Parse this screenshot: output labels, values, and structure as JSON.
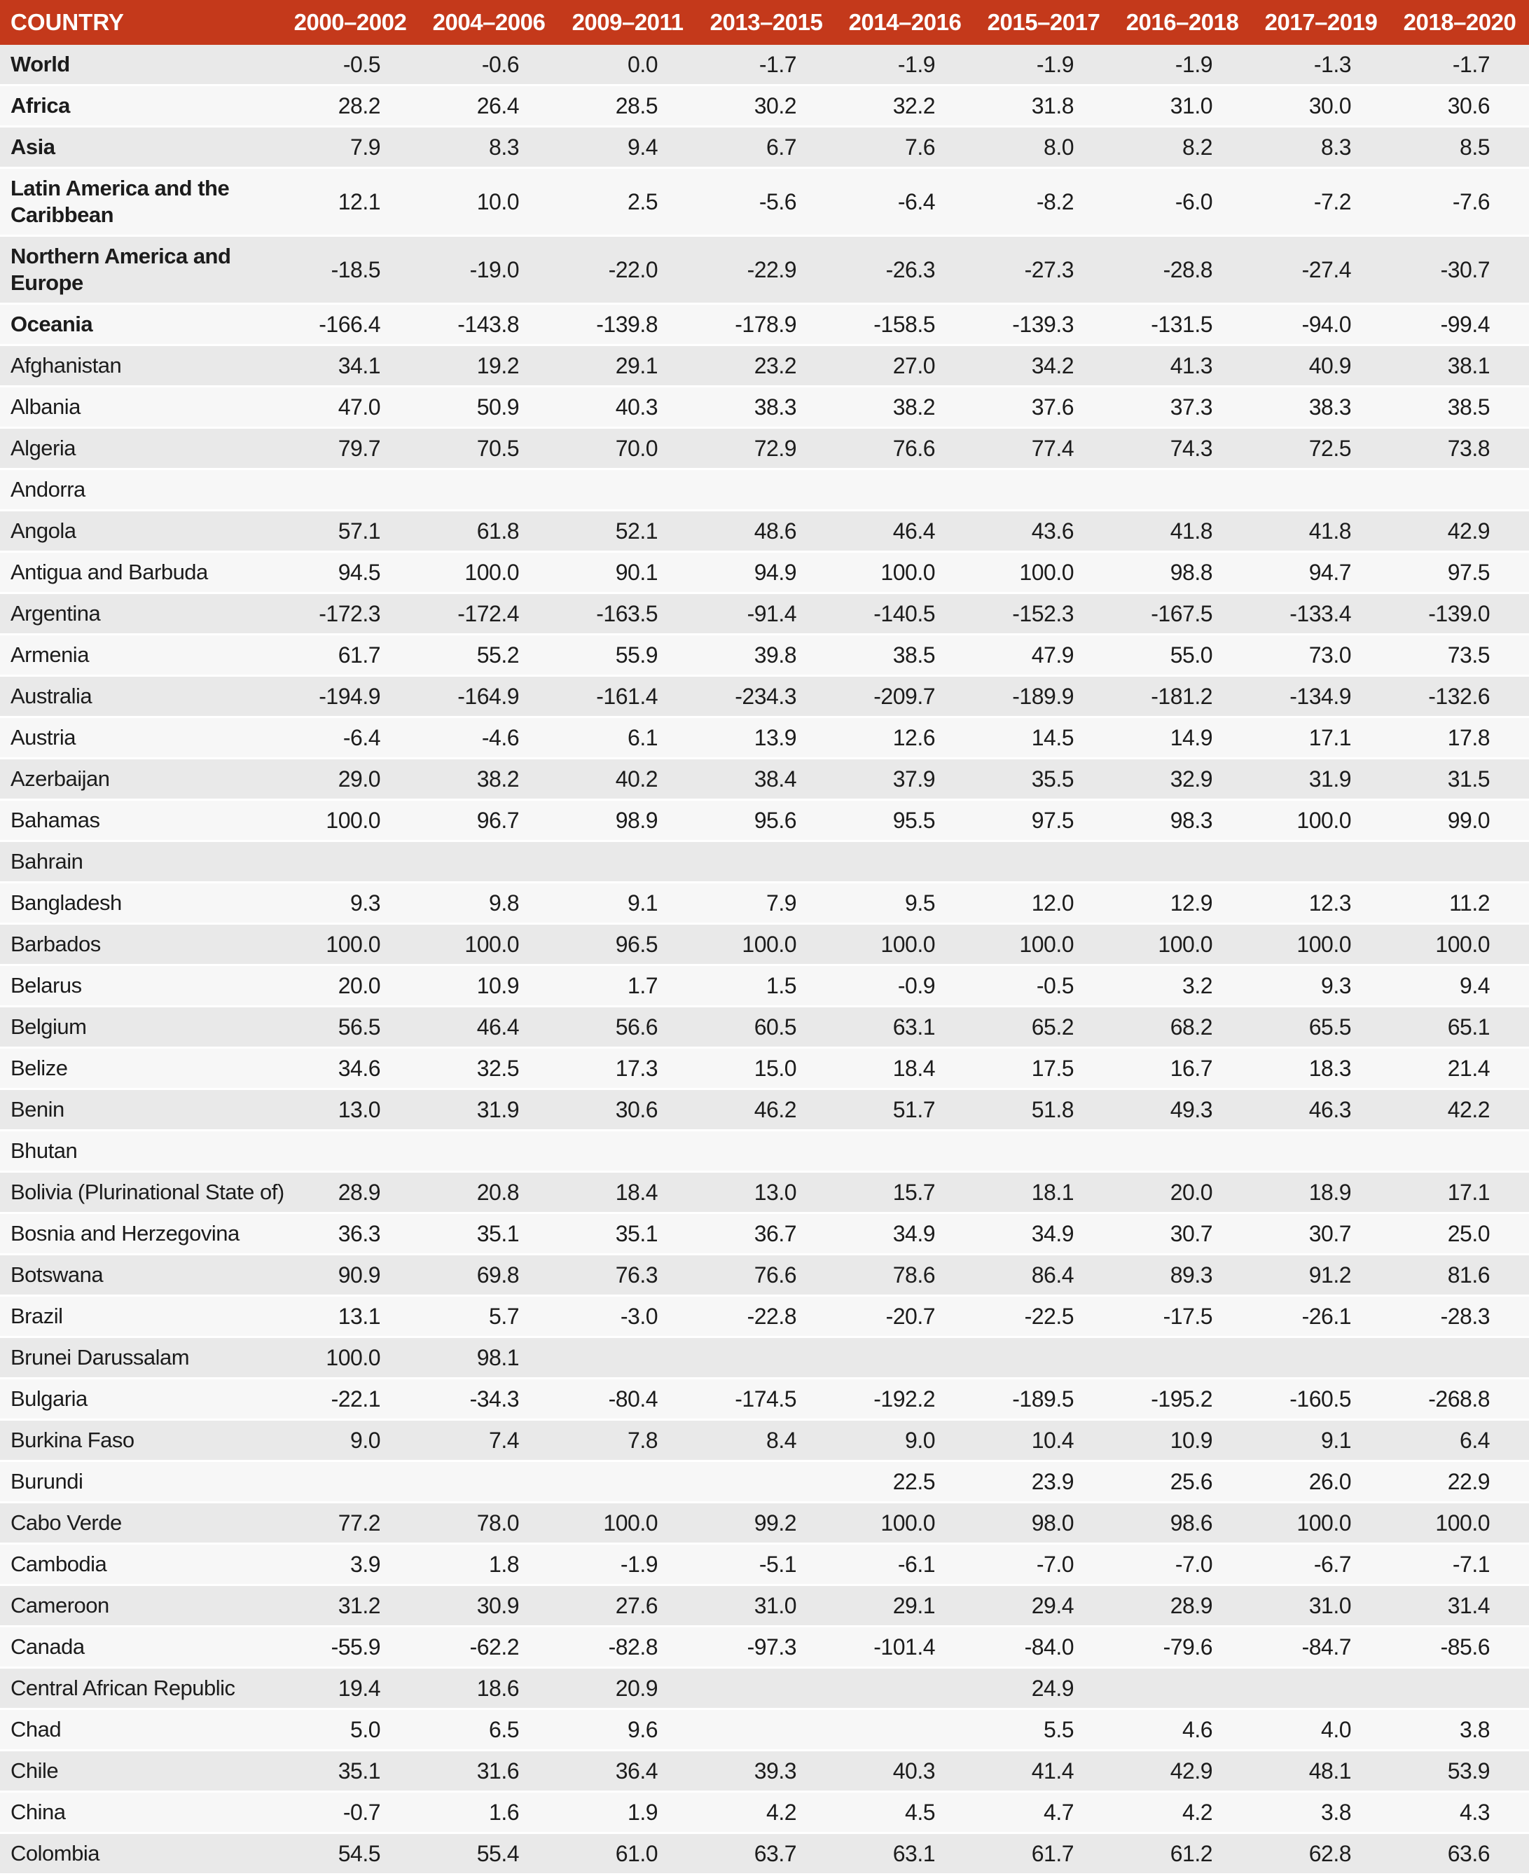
{
  "colors": {
    "header_bg": "#c4391b",
    "header_text": "#ffffff",
    "row_gray": "#e9e9e9",
    "row_light": "#f7f7f7",
    "separator": "#ffffff",
    "text": "#1c1c1c"
  },
  "table": {
    "country_label": "COUNTRY",
    "columns": [
      "2000–2002",
      "2004–2006",
      "2009–2011",
      "2013–2015",
      "2014–2016",
      "2015–2017",
      "2016–2018",
      "2017–2019",
      "2018–2020"
    ],
    "rows": [
      {
        "name": "World",
        "region": true,
        "values": [
          "-0.5",
          "-0.6",
          "0.0",
          "-1.7",
          "-1.9",
          "-1.9",
          "-1.9",
          "-1.3",
          "-1.7"
        ]
      },
      {
        "name": "Africa",
        "region": true,
        "values": [
          "28.2",
          "26.4",
          "28.5",
          "30.2",
          "32.2",
          "31.8",
          "31.0",
          "30.0",
          "30.6"
        ]
      },
      {
        "name": "Asia",
        "region": true,
        "values": [
          "7.9",
          "8.3",
          "9.4",
          "6.7",
          "7.6",
          "8.0",
          "8.2",
          "8.3",
          "8.5"
        ]
      },
      {
        "name": "Latin America and the Caribbean",
        "region": true,
        "values": [
          "12.1",
          "10.0",
          "2.5",
          "-5.6",
          "-6.4",
          "-8.2",
          "-6.0",
          "-7.2",
          "-7.6"
        ]
      },
      {
        "name": "Northern America and Europe",
        "region": true,
        "values": [
          "-18.5",
          "-19.0",
          "-22.0",
          "-22.9",
          "-26.3",
          "-27.3",
          "-28.8",
          "-27.4",
          "-30.7"
        ]
      },
      {
        "name": "Oceania",
        "region": true,
        "values": [
          "-166.4",
          "-143.8",
          "-139.8",
          "-178.9",
          "-158.5",
          "-139.3",
          "-131.5",
          "-94.0",
          "-99.4"
        ]
      },
      {
        "name": "Afghanistan",
        "region": false,
        "values": [
          "34.1",
          "19.2",
          "29.1",
          "23.2",
          "27.0",
          "34.2",
          "41.3",
          "40.9",
          "38.1"
        ]
      },
      {
        "name": "Albania",
        "region": false,
        "values": [
          "47.0",
          "50.9",
          "40.3",
          "38.3",
          "38.2",
          "37.6",
          "37.3",
          "38.3",
          "38.5"
        ]
      },
      {
        "name": "Algeria",
        "region": false,
        "values": [
          "79.7",
          "70.5",
          "70.0",
          "72.9",
          "76.6",
          "77.4",
          "74.3",
          "72.5",
          "73.8"
        ]
      },
      {
        "name": "Andorra",
        "region": false,
        "values": [
          "",
          "",
          "",
          "",
          "",
          "",
          "",
          "",
          ""
        ]
      },
      {
        "name": "Angola",
        "region": false,
        "values": [
          "57.1",
          "61.8",
          "52.1",
          "48.6",
          "46.4",
          "43.6",
          "41.8",
          "41.8",
          "42.9"
        ]
      },
      {
        "name": "Antigua and Barbuda",
        "region": false,
        "values": [
          "94.5",
          "100.0",
          "90.1",
          "94.9",
          "100.0",
          "100.0",
          "98.8",
          "94.7",
          "97.5"
        ]
      },
      {
        "name": "Argentina",
        "region": false,
        "values": [
          "-172.3",
          "-172.4",
          "-163.5",
          "-91.4",
          "-140.5",
          "-152.3",
          "-167.5",
          "-133.4",
          "-139.0"
        ]
      },
      {
        "name": "Armenia",
        "region": false,
        "values": [
          "61.7",
          "55.2",
          "55.9",
          "39.8",
          "38.5",
          "47.9",
          "55.0",
          "73.0",
          "73.5"
        ]
      },
      {
        "name": "Australia",
        "region": false,
        "values": [
          "-194.9",
          "-164.9",
          "-161.4",
          "-234.3",
          "-209.7",
          "-189.9",
          "-181.2",
          "-134.9",
          "-132.6"
        ]
      },
      {
        "name": "Austria",
        "region": false,
        "values": [
          "-6.4",
          "-4.6",
          "6.1",
          "13.9",
          "12.6",
          "14.5",
          "14.9",
          "17.1",
          "17.8"
        ]
      },
      {
        "name": "Azerbaijan",
        "region": false,
        "values": [
          "29.0",
          "38.2",
          "40.2",
          "38.4",
          "37.9",
          "35.5",
          "32.9",
          "31.9",
          "31.5"
        ]
      },
      {
        "name": "Bahamas",
        "region": false,
        "values": [
          "100.0",
          "96.7",
          "98.9",
          "95.6",
          "95.5",
          "97.5",
          "98.3",
          "100.0",
          "99.0"
        ]
      },
      {
        "name": "Bahrain",
        "region": false,
        "values": [
          "",
          "",
          "",
          "",
          "",
          "",
          "",
          "",
          ""
        ]
      },
      {
        "name": "Bangladesh",
        "region": false,
        "values": [
          "9.3",
          "9.8",
          "9.1",
          "7.9",
          "9.5",
          "12.0",
          "12.9",
          "12.3",
          "11.2"
        ]
      },
      {
        "name": "Barbados",
        "region": false,
        "values": [
          "100.0",
          "100.0",
          "96.5",
          "100.0",
          "100.0",
          "100.0",
          "100.0",
          "100.0",
          "100.0"
        ]
      },
      {
        "name": "Belarus",
        "region": false,
        "values": [
          "20.0",
          "10.9",
          "1.7",
          "1.5",
          "-0.9",
          "-0.5",
          "3.2",
          "9.3",
          "9.4"
        ]
      },
      {
        "name": "Belgium",
        "region": false,
        "values": [
          "56.5",
          "46.4",
          "56.6",
          "60.5",
          "63.1",
          "65.2",
          "68.2",
          "65.5",
          "65.1"
        ]
      },
      {
        "name": "Belize",
        "region": false,
        "values": [
          "34.6",
          "32.5",
          "17.3",
          "15.0",
          "18.4",
          "17.5",
          "16.7",
          "18.3",
          "21.4"
        ]
      },
      {
        "name": "Benin",
        "region": false,
        "values": [
          "13.0",
          "31.9",
          "30.6",
          "46.2",
          "51.7",
          "51.8",
          "49.3",
          "46.3",
          "42.2"
        ]
      },
      {
        "name": "Bhutan",
        "region": false,
        "values": [
          "",
          "",
          "",
          "",
          "",
          "",
          "",
          "",
          ""
        ]
      },
      {
        "name": "Bolivia (Plurinational State of)",
        "region": false,
        "values": [
          "28.9",
          "20.8",
          "18.4",
          "13.0",
          "15.7",
          "18.1",
          "20.0",
          "18.9",
          "17.1"
        ]
      },
      {
        "name": "Bosnia and Herzegovina",
        "region": false,
        "values": [
          "36.3",
          "35.1",
          "35.1",
          "36.7",
          "34.9",
          "34.9",
          "30.7",
          "30.7",
          "25.0"
        ]
      },
      {
        "name": "Botswana",
        "region": false,
        "values": [
          "90.9",
          "69.8",
          "76.3",
          "76.6",
          "78.6",
          "86.4",
          "89.3",
          "91.2",
          "81.6"
        ]
      },
      {
        "name": "Brazil",
        "region": false,
        "values": [
          "13.1",
          "5.7",
          "-3.0",
          "-22.8",
          "-20.7",
          "-22.5",
          "-17.5",
          "-26.1",
          "-28.3"
        ]
      },
      {
        "name": "Brunei Darussalam",
        "region": false,
        "values": [
          "100.0",
          "98.1",
          "",
          "",
          "",
          "",
          "",
          "",
          ""
        ]
      },
      {
        "name": "Bulgaria",
        "region": false,
        "values": [
          "-22.1",
          "-34.3",
          "-80.4",
          "-174.5",
          "-192.2",
          "-189.5",
          "-195.2",
          "-160.5",
          "-268.8"
        ]
      },
      {
        "name": "Burkina Faso",
        "region": false,
        "values": [
          "9.0",
          "7.4",
          "7.8",
          "8.4",
          "9.0",
          "10.4",
          "10.9",
          "9.1",
          "6.4"
        ]
      },
      {
        "name": "Burundi",
        "region": false,
        "values": [
          "",
          "",
          "",
          "",
          "22.5",
          "23.9",
          "25.6",
          "26.0",
          "22.9"
        ]
      },
      {
        "name": "Cabo Verde",
        "region": false,
        "values": [
          "77.2",
          "78.0",
          "100.0",
          "99.2",
          "100.0",
          "98.0",
          "98.6",
          "100.0",
          "100.0"
        ]
      },
      {
        "name": "Cambodia",
        "region": false,
        "values": [
          "3.9",
          "1.8",
          "-1.9",
          "-5.1",
          "-6.1",
          "-7.0",
          "-7.0",
          "-6.7",
          "-7.1"
        ]
      },
      {
        "name": "Cameroon",
        "region": false,
        "values": [
          "31.2",
          "30.9",
          "27.6",
          "31.0",
          "29.1",
          "29.4",
          "28.9",
          "31.0",
          "31.4"
        ]
      },
      {
        "name": "Canada",
        "region": false,
        "values": [
          "-55.9",
          "-62.2",
          "-82.8",
          "-97.3",
          "-101.4",
          "-84.0",
          "-79.6",
          "-84.7",
          "-85.6"
        ]
      },
      {
        "name": "Central African Republic",
        "region": false,
        "values": [
          "19.4",
          "18.6",
          "20.9",
          "",
          "",
          "24.9",
          "",
          "",
          ""
        ]
      },
      {
        "name": "Chad",
        "region": false,
        "values": [
          "5.0",
          "6.5",
          "9.6",
          "",
          "",
          "5.5",
          "4.6",
          "4.0",
          "3.8"
        ]
      },
      {
        "name": "Chile",
        "region": false,
        "values": [
          "35.1",
          "31.6",
          "36.4",
          "39.3",
          "40.3",
          "41.4",
          "42.9",
          "48.1",
          "53.9"
        ]
      },
      {
        "name": "China",
        "region": false,
        "values": [
          "-0.7",
          "1.6",
          "1.9",
          "4.2",
          "4.5",
          "4.7",
          "4.2",
          "3.8",
          "4.3"
        ]
      },
      {
        "name": "Colombia",
        "region": false,
        "values": [
          "54.5",
          "55.4",
          "61.0",
          "63.7",
          "63.1",
          "61.7",
          "61.2",
          "62.8",
          "63.6"
        ]
      }
    ]
  }
}
